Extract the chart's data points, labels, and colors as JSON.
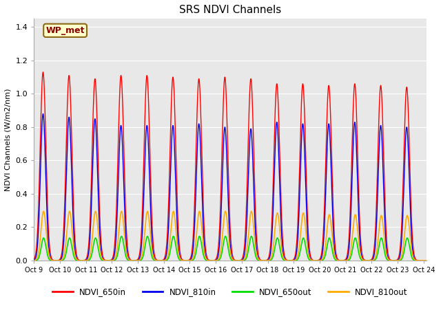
{
  "title": "SRS NDVI Channels",
  "ylabel": "NDVI Channels (W/m2/nm)",
  "xlabel": "",
  "ylim": [
    0.0,
    1.45
  ],
  "bg_color": "#e8e8e8",
  "fig_bg": "#ffffff",
  "annotation": "WP_met",
  "series": [
    {
      "label": "NDVI_650in",
      "color": "#ff0000",
      "peaks": [
        9.35,
        10.35,
        11.35,
        12.35,
        13.35,
        14.35,
        15.35,
        16.35,
        17.35,
        18.35,
        19.35,
        20.35,
        21.35,
        22.35,
        23.35
      ],
      "peak_vals": [
        1.13,
        1.11,
        1.09,
        1.11,
        1.11,
        1.1,
        1.09,
        1.1,
        1.09,
        1.06,
        1.06,
        1.05,
        1.06,
        1.05,
        1.04
      ],
      "sigma": 0.11
    },
    {
      "label": "NDVI_810in",
      "color": "#0000ee",
      "peaks": [
        9.35,
        10.35,
        11.35,
        12.35,
        13.35,
        14.35,
        15.35,
        16.35,
        17.35,
        18.35,
        19.35,
        20.35,
        21.35,
        22.35,
        23.35
      ],
      "peak_vals": [
        0.88,
        0.86,
        0.85,
        0.81,
        0.81,
        0.81,
        0.82,
        0.8,
        0.79,
        0.83,
        0.82,
        0.82,
        0.83,
        0.81,
        0.8
      ],
      "sigma": 0.1
    },
    {
      "label": "NDVI_650out",
      "color": "#00dd00",
      "peaks": [
        9.37,
        10.37,
        11.37,
        12.37,
        13.37,
        14.37,
        15.37,
        16.37,
        17.37,
        18.37,
        19.37,
        20.37,
        21.37,
        22.37,
        23.37
      ],
      "peak_vals": [
        0.135,
        0.135,
        0.135,
        0.145,
        0.145,
        0.145,
        0.145,
        0.145,
        0.145,
        0.135,
        0.135,
        0.135,
        0.135,
        0.135,
        0.135
      ],
      "sigma": 0.09
    },
    {
      "label": "NDVI_810out",
      "color": "#ffaa00",
      "peaks": [
        9.37,
        10.37,
        11.37,
        12.37,
        13.37,
        14.37,
        15.37,
        16.37,
        17.37,
        18.37,
        19.37,
        20.37,
        21.37,
        22.37,
        23.37
      ],
      "peak_vals": [
        0.295,
        0.295,
        0.295,
        0.295,
        0.295,
        0.295,
        0.295,
        0.295,
        0.295,
        0.285,
        0.285,
        0.275,
        0.275,
        0.27,
        0.27
      ],
      "sigma": 0.1
    }
  ],
  "xtick_positions": [
    9,
    10,
    11,
    12,
    13,
    14,
    15,
    16,
    17,
    18,
    19,
    20,
    21,
    22,
    23,
    24
  ],
  "xtick_labels": [
    "Oct 9",
    "Oct 10",
    "Oct 11",
    "Oct 12",
    "Oct 13",
    "Oct 14",
    "Oct 15",
    "Oct 16",
    "Oct 17",
    "Oct 18",
    "Oct 19",
    "Oct 20",
    "Oct 21",
    "Oct 22",
    "Oct 23",
    "Oct 24"
  ],
  "xlim": [
    9.0,
    24.1
  ],
  "ytick_vals": [
    0.0,
    0.2,
    0.4,
    0.6,
    0.8,
    1.0,
    1.2,
    1.4
  ],
  "gridlines_y": [
    0.2,
    0.4,
    0.6,
    0.8,
    1.0,
    1.2,
    1.4
  ],
  "legend_ncol": 4
}
